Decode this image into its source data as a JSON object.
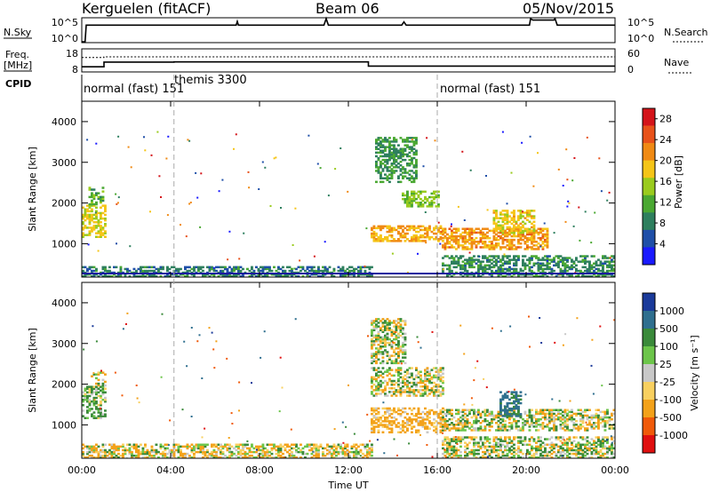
{
  "header": {
    "station": "Kerguelen (fitACF)",
    "beam": "Beam 06",
    "date": "05/Nov/2015"
  },
  "side_labels": {
    "nsky": "N.Sky",
    "nsearch": "N.Search",
    "freq_line1": "Freq.",
    "freq_line2": "[MHz]",
    "nave": "Nave",
    "cpid": "CPID"
  },
  "ticks": {
    "nsky_left": [
      "10^5",
      "10^0"
    ],
    "nsky_right": [
      "10^5",
      "10^0"
    ],
    "freq_left": [
      "18",
      "8"
    ],
    "nave_right": [
      "60",
      "0"
    ],
    "time": [
      "00:00",
      "04:00",
      "08:00",
      "12:00",
      "16:00",
      "20:00",
      "00:00"
    ],
    "slant_range": [
      "1000",
      "2000",
      "3000",
      "4000"
    ],
    "power_scale": [
      "4",
      "8",
      "12",
      "16",
      "20",
      "24",
      "28"
    ],
    "velocity_scale": [
      "-1000",
      "-500",
      "-100",
      "-25",
      "25",
      "100",
      "500",
      "1000"
    ]
  },
  "cpid_segments": [
    {
      "label": "normal (fast) 151",
      "start_h": 0.0
    },
    {
      "label": "themis 3300",
      "start_h": 4.15
    },
    {
      "label": "normal (fast) 151",
      "start_h": 16.0
    }
  ],
  "axes": {
    "xlabel": "Time UT",
    "ylabel_top": "Slant Range [km]",
    "ylabel_bottom": "Slant Range [km]",
    "power_label": "Power [dB]",
    "velocity_label": "Velocity [m s⁻¹]"
  },
  "colors": {
    "power": [
      "#1a1aff",
      "#1f4fa8",
      "#2e7f5e",
      "#4aa832",
      "#9acb1e",
      "#f5c518",
      "#f08a14",
      "#e8521a",
      "#d4141a"
    ],
    "velocity": [
      "#e01010",
      "#f05a0a",
      "#f3a21a",
      "#f8d060",
      "#c8c8c8",
      "#6cc54a",
      "#3a8a3a",
      "#2f6f8f",
      "#1a3a9a"
    ]
  },
  "chart_data": [
    {
      "type": "line",
      "name": "N.Sky / N.Search",
      "xlim": [
        0,
        24
      ],
      "x": [
        0,
        0.15,
        0.2,
        6.95,
        7.0,
        7.05,
        10.9,
        11.0,
        11.1,
        14.4,
        14.5,
        14.6,
        20.15,
        20.2,
        20.3,
        21.25,
        21.3,
        21.4,
        24
      ],
      "y_sky": [
        0,
        0,
        3.6,
        3.6,
        4.4,
        3.6,
        3.6,
        5,
        3.6,
        3.6,
        4.3,
        3.6,
        3.6,
        5,
        4.7,
        4.7,
        5,
        3.6,
        3.6
      ]
    },
    {
      "type": "line",
      "name": "Freq / Nave",
      "xlim": [
        0,
        24
      ],
      "ylim": [
        8,
        18
      ],
      "x": [
        0,
        1.0,
        1.0,
        4.15,
        4.15,
        12.9,
        12.9,
        14.0,
        14.0,
        24
      ],
      "freq": [
        10.0,
        10.0,
        12.2,
        12.2,
        12.3,
        12.3,
        10.3,
        10.3,
        10.3,
        10.3
      ],
      "nave_x": [
        0,
        1.0,
        1.0,
        24
      ],
      "nave": [
        38,
        38,
        40,
        40
      ]
    },
    {
      "type": "heatmap",
      "name": "Power",
      "xlim": [
        0,
        24
      ],
      "ylim": [
        180,
        4500
      ],
      "zlim": [
        0,
        30
      ],
      "clusters": [
        {
          "t0": 0.0,
          "t1": 1.0,
          "r0": 1150,
          "r1": 1950,
          "v": 17
        },
        {
          "t0": 0.3,
          "t1": 0.9,
          "r0": 1950,
          "r1": 2400,
          "v": 12
        },
        {
          "t0": 13.0,
          "t1": 16.2,
          "r0": 1050,
          "r1": 1450,
          "v": 20
        },
        {
          "t0": 14.4,
          "t1": 16.0,
          "r0": 1900,
          "r1": 2300,
          "v": 14
        },
        {
          "t0": 13.2,
          "t1": 15.0,
          "r0": 2500,
          "r1": 3600,
          "v": 10
        },
        {
          "t0": 16.2,
          "t1": 21.0,
          "r0": 850,
          "r1": 1350,
          "v": 21
        },
        {
          "t0": 18.5,
          "t1": 20.4,
          "r0": 1250,
          "r1": 1800,
          "v": 18
        },
        {
          "t0": 16.2,
          "t1": 24.0,
          "r0": 180,
          "r1": 700,
          "v": 9
        },
        {
          "t0": 0.0,
          "t1": 13.0,
          "r0": 180,
          "r1": 450,
          "v": 8
        }
      ]
    },
    {
      "type": "heatmap",
      "name": "Velocity",
      "xlim": [
        0,
        24
      ],
      "ylim": [
        180,
        4500
      ],
      "zlim": [
        -1200,
        1200
      ],
      "clusters": [
        {
          "t0": 0.0,
          "t1": 1.0,
          "r0": 1150,
          "r1": 1950,
          "v": 150
        },
        {
          "t0": 0.4,
          "t1": 1.0,
          "r0": 1950,
          "r1": 2300,
          "v": 0
        },
        {
          "t0": 13.0,
          "t1": 16.2,
          "r0": 1700,
          "r1": 2400,
          "v": 0
        },
        {
          "t0": 13.0,
          "t1": 14.5,
          "r0": 2500,
          "r1": 3600,
          "v": 0
        },
        {
          "t0": 13.0,
          "t1": 16.2,
          "r0": 800,
          "r1": 1400,
          "v": -200
        },
        {
          "t0": 16.2,
          "t1": 24.0,
          "r0": 850,
          "r1": 1350,
          "v": 0
        },
        {
          "t0": 18.8,
          "t1": 19.8,
          "r0": 1200,
          "r1": 1800,
          "v": 600
        },
        {
          "t0": 16.2,
          "t1": 24.0,
          "r0": 180,
          "r1": 700,
          "v": 30
        },
        {
          "t0": 0.0,
          "t1": 13.0,
          "r0": 180,
          "r1": 500,
          "v": -60
        }
      ]
    }
  ]
}
